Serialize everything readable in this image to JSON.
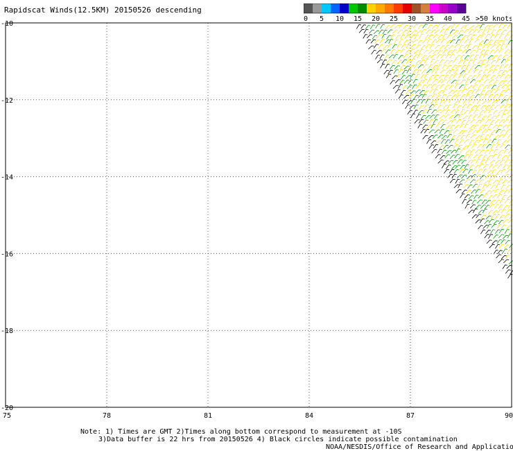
{
  "title": "Rapidscat Winds(12.5KM) 20150526 descending",
  "colorbar": {
    "colors": [
      "#555555",
      "#999999",
      "#00c8ff",
      "#0064ff",
      "#0000c8",
      "#00c800",
      "#008c00",
      "#ffd200",
      "#ffaa00",
      "#ff7800",
      "#ff3c00",
      "#e60000",
      "#a05028",
      "#d2823c",
      "#ff00ff",
      "#c800c8",
      "#9600c8",
      "#5a0096"
    ],
    "labels": [
      "0",
      "5",
      "10",
      "15",
      "20",
      "25",
      "30",
      "35",
      "40",
      "45",
      ">50 knots"
    ]
  },
  "map": {
    "lon_range": [
      75,
      90
    ],
    "lat_range": [
      -20,
      -10
    ],
    "lon_ticks": [
      "75",
      "78",
      "81",
      "84",
      "87",
      "90"
    ],
    "lat_ticks": [
      "-10",
      "-12",
      "-14",
      "-16",
      "-18",
      "-20"
    ],
    "grid": "dotted",
    "swath_color_main": "#ffe000",
    "swath_color_low": "#00a000",
    "swath_color_flag": "#000000"
  },
  "notes": {
    "line1": "Note: 1) Times are GMT 2)Times along bottom correspond to measurement at -10S",
    "line2": "3)Data buffer is 22 hrs from 20150526 4) Black circles indicate possible contamination",
    "line3": "NOAA/NESDIS/Office of Research and Applications"
  }
}
